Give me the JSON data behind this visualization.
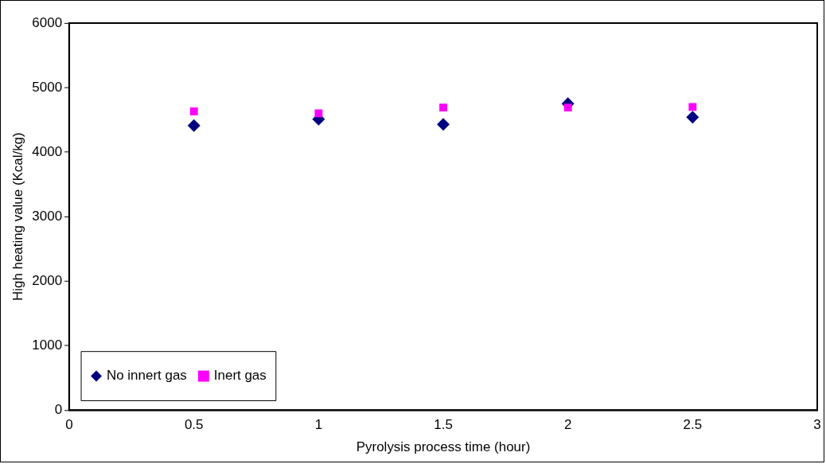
{
  "chart_data": {
    "type": "scatter",
    "xlabel": "Pyrolysis process time (hour)",
    "ylabel": "High heating value (Kcal/kg)",
    "x": [
      0.5,
      1,
      1.5,
      2,
      2.5
    ],
    "series": [
      {
        "name": "No innert gas",
        "color": "#000080",
        "marker": "diamond",
        "values": [
          4410,
          4510,
          4430,
          4750,
          4540
        ]
      },
      {
        "name": "Inert gas",
        "color": "#ff00ff",
        "marker": "square",
        "values": [
          4630,
          4600,
          4690,
          4690,
          4700
        ]
      }
    ],
    "xlim": [
      0,
      3
    ],
    "xticks": [
      0,
      0.5,
      1,
      1.5,
      2,
      2.5,
      3
    ],
    "ylim": [
      0,
      6000
    ],
    "yticks": [
      0,
      1000,
      2000,
      3000,
      4000,
      5000,
      6000
    ],
    "grid": false,
    "legend": "bottom left"
  }
}
